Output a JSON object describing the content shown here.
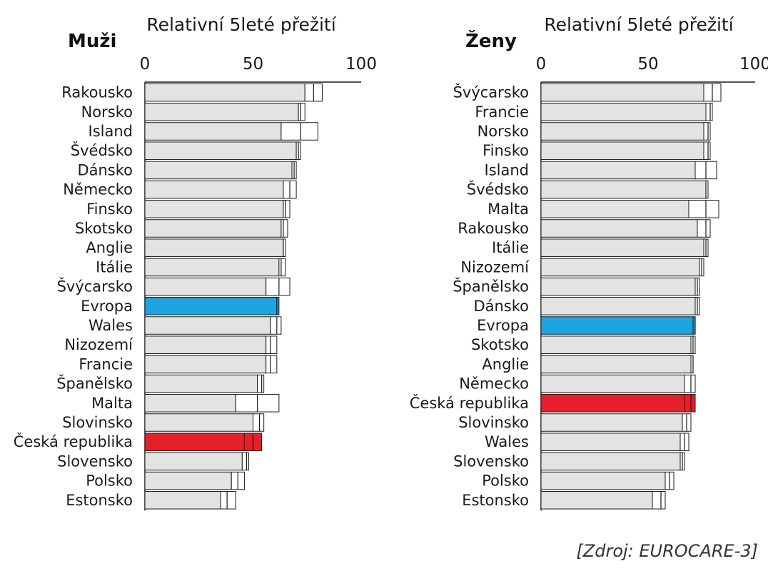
{
  "source": "[Zdroj: EUROCARE-3]",
  "colors": {
    "bar_fill": "#e3e3e3",
    "bar_stroke": "#1a1a1a",
    "europe": "#1ea4e0",
    "czech": "#e5202a"
  },
  "chart_data": [
    {
      "type": "bar",
      "orientation": "horizontal",
      "title": "Muži",
      "xlabel": "Relativní 5leté přežití",
      "xlim": [
        0,
        100
      ],
      "xticks": [
        "0",
        "50",
        "100"
      ],
      "categories": [
        "Rakousko",
        "Norsko",
        "Island",
        "Švédsko",
        "Dánsko",
        "Německo",
        "Finsko",
        "Skotsko",
        "Anglie",
        "Itálie",
        "Švýcarsko",
        "Evropa",
        "Wales",
        "Nizozemí",
        "Francie",
        "Španělsko",
        "Malta",
        "Slovinsko",
        "Česká republika",
        "Slovensko",
        "Polsko",
        "Estonsko"
      ],
      "values": [
        74,
        71,
        63,
        70,
        68,
        64,
        64,
        63,
        64,
        62,
        56,
        61,
        58,
        56,
        56,
        52,
        42,
        50,
        46,
        45,
        40,
        35
      ],
      "ci_low": [
        74,
        71,
        63,
        70,
        68,
        64,
        64,
        63,
        64,
        62,
        56,
        61,
        58,
        56,
        56,
        52,
        42,
        50,
        46,
        45,
        40,
        35
      ],
      "ci_mid": [
        78,
        72,
        72,
        71,
        69,
        67,
        65,
        64,
        64,
        63,
        62,
        61,
        61,
        58,
        58,
        54,
        52,
        53,
        50,
        47,
        43,
        38
      ],
      "ci_high": [
        82,
        74,
        80,
        72,
        70,
        70,
        67,
        66,
        65,
        65,
        67,
        62,
        63,
        61,
        61,
        55,
        62,
        55,
        54,
        48,
        46,
        42
      ],
      "highlight": {
        "Evropa": "europe",
        "Česká republika": "czech"
      }
    },
    {
      "type": "bar",
      "orientation": "horizontal",
      "title": "Ženy",
      "xlabel": "Relativní 5leté přežití",
      "xlim": [
        0,
        100
      ],
      "xticks": [
        "0",
        "50",
        "100"
      ],
      "categories": [
        "Švýcarsko",
        "Francie",
        "Norsko",
        "Finsko",
        "Island",
        "Švédsko",
        "Malta",
        "Rakousko",
        "Itálie",
        "Nizozemí",
        "Španělsko",
        "Dánsko",
        "Evropa",
        "Skotsko",
        "Anglie",
        "Německo",
        "Česká republika",
        "Slovinsko",
        "Wales",
        "Slovensko",
        "Polsko",
        "Estonsko"
      ],
      "values": [
        76,
        77,
        76,
        76,
        72,
        77,
        69,
        73,
        76,
        74,
        72,
        72,
        71,
        70,
        70,
        67,
        67,
        66,
        65,
        65,
        58,
        52
      ],
      "ci_low": [
        76,
        77,
        76,
        76,
        72,
        77,
        69,
        73,
        76,
        74,
        72,
        72,
        71,
        70,
        70,
        67,
        67,
        66,
        65,
        65,
        58,
        52
      ],
      "ci_mid": [
        80,
        79,
        78,
        78,
        77,
        77,
        77,
        77,
        77,
        75,
        73,
        73,
        72,
        71,
        71,
        70,
        70,
        68,
        67,
        66,
        60,
        56
      ],
      "ci_high": [
        84,
        80,
        79,
        79,
        82,
        78,
        83,
        79,
        78,
        76,
        74,
        74,
        72,
        72,
        71,
        72,
        72,
        70,
        69,
        67,
        62,
        58
      ],
      "highlight": {
        "Evropa": "europe",
        "Česká republika": "czech"
      }
    }
  ]
}
